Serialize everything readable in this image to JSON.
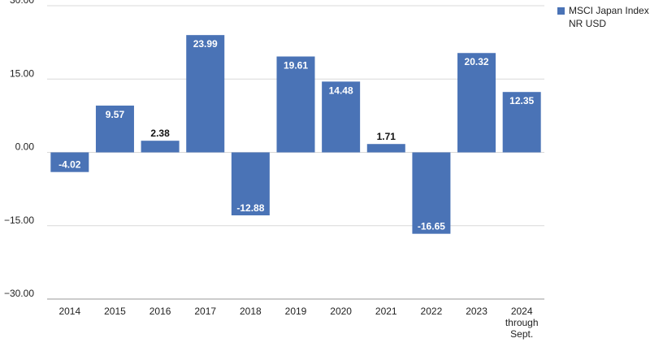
{
  "chart_data": {
    "type": "bar",
    "categories": [
      "2014",
      "2015",
      "2016",
      "2017",
      "2018",
      "2019",
      "2020",
      "2021",
      "2022",
      "2023",
      "2024 through Sept."
    ],
    "series": [
      {
        "name": "MSCI Japan Index NR USD",
        "values": [
          -4.02,
          9.57,
          2.38,
          23.99,
          -12.88,
          19.61,
          14.48,
          1.71,
          -16.65,
          20.32,
          12.35
        ]
      }
    ],
    "value_labels": [
      "-4.02",
      "9.57",
      "2.38",
      "23.99",
      "-12.88",
      "19.61",
      "14.48",
      "1.71",
      "-16.65",
      "20.32",
      "12.35"
    ],
    "y_ticks": [
      "30.00",
      "15.00",
      "0.00",
      "−15.00",
      "−30.00"
    ],
    "y_tick_values": [
      30,
      15,
      0,
      -15,
      -30
    ],
    "ylim": [
      -30,
      30
    ],
    "grid": true,
    "legend_position": "top-right",
    "bar_color": "#4a73b6",
    "title": "",
    "xlabel": "",
    "ylabel": ""
  }
}
